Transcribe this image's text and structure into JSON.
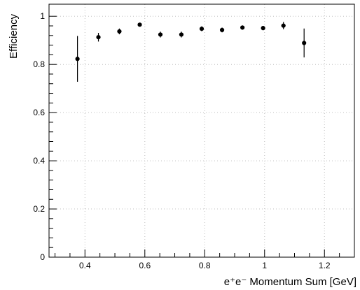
{
  "chart_data": {
    "type": "scatter",
    "title": "",
    "xlabel": "e⁺e⁻ Momentum Sum    [GeV]",
    "ylabel": "Efficiency",
    "xlim": [
      0.28,
      1.3
    ],
    "ylim": [
      0,
      1.05
    ],
    "grid": true,
    "legend": "",
    "x_ticks": [
      0.4,
      0.6,
      0.8,
      1.0,
      1.2
    ],
    "x_tick_labels": [
      "0.4",
      "0.6",
      "0.8",
      "1",
      "1.2"
    ],
    "y_ticks": [
      0,
      0.2,
      0.4,
      0.6,
      0.8,
      1.0
    ],
    "y_tick_labels": [
      "0",
      "0.2",
      "0.4",
      "0.6",
      "0.8",
      "1"
    ],
    "series": [
      {
        "x": [
          0.375,
          0.445,
          0.515,
          0.583,
          0.652,
          0.722,
          0.79,
          0.858,
          0.926,
          0.995,
          1.063,
          1.132
        ],
        "y": [
          0.823,
          0.913,
          0.937,
          0.965,
          0.924,
          0.924,
          0.948,
          0.943,
          0.953,
          0.951,
          0.961,
          0.889
        ],
        "yerr_low": [
          0.095,
          0.018,
          0.012,
          0.007,
          0.012,
          0.012,
          0.01,
          0.01,
          0.009,
          0.009,
          0.015,
          0.06
        ],
        "yerr_high": [
          0.095,
          0.018,
          0.012,
          0.007,
          0.012,
          0.012,
          0.01,
          0.01,
          0.009,
          0.009,
          0.015,
          0.06
        ]
      }
    ]
  }
}
